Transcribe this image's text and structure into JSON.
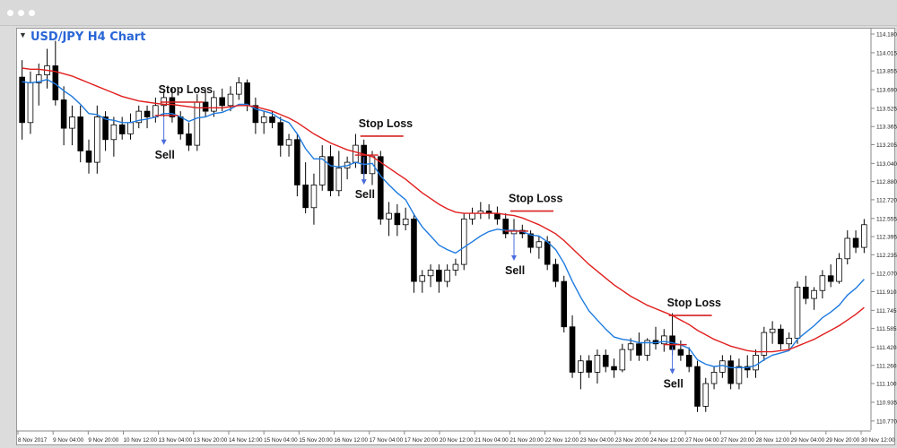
{
  "window": {
    "controls": [
      "dot",
      "dot",
      "dot"
    ]
  },
  "chart_data": {
    "type": "candlestick",
    "title": "USD/JPY H4 Chart",
    "ylim": [
      110.69,
      114.18
    ],
    "y_ticks": [
      "114.180",
      "114.015",
      "113.855",
      "113.690",
      "113.525",
      "113.365",
      "113.205",
      "113.040",
      "112.880",
      "112.720",
      "112.555",
      "112.395",
      "112.235",
      "112.070",
      "111.910",
      "111.745",
      "111.585",
      "111.420",
      "111.260",
      "111.100",
      "110.935",
      "110.770"
    ],
    "x_ticks": [
      "8 Nov 2017",
      "9 Nov 04:00",
      "9 Nov 20:00",
      "10 Nov 12:00",
      "13 Nov 04:00",
      "13 Nov 20:00",
      "14 Nov 12:00",
      "15 Nov 04:00",
      "15 Nov 20:00",
      "16 Nov 12:00",
      "17 Nov 04:00",
      "17 Nov 20:00",
      "20 Nov 12:00",
      "21 Nov 04:00",
      "21 Nov 20:00",
      "22 Nov 12:00",
      "23 Nov 04:00",
      "23 Nov 20:00",
      "24 Nov 12:00",
      "27 Nov 04:00",
      "27 Nov 20:00",
      "28 Nov 12:00",
      "29 Nov 04:00",
      "29 Nov 20:00",
      "30 Nov 12:00"
    ],
    "candles": [
      {
        "o": 113.8,
        "h": 113.95,
        "l": 113.25,
        "c": 113.4
      },
      {
        "o": 113.4,
        "h": 113.85,
        "l": 113.3,
        "c": 113.75
      },
      {
        "o": 113.75,
        "h": 113.92,
        "l": 113.55,
        "c": 113.82
      },
      {
        "o": 113.82,
        "h": 114.05,
        "l": 113.7,
        "c": 113.9
      },
      {
        "o": 113.9,
        "h": 114.12,
        "l": 113.55,
        "c": 113.6
      },
      {
        "o": 113.6,
        "h": 113.72,
        "l": 113.2,
        "c": 113.35
      },
      {
        "o": 113.35,
        "h": 113.55,
        "l": 113.2,
        "c": 113.45
      },
      {
        "o": 113.45,
        "h": 113.55,
        "l": 113.05,
        "c": 113.15
      },
      {
        "o": 113.15,
        "h": 113.25,
        "l": 112.95,
        "c": 113.05
      },
      {
        "o": 113.05,
        "h": 113.55,
        "l": 112.95,
        "c": 113.45
      },
      {
        "o": 113.45,
        "h": 113.5,
        "l": 113.15,
        "c": 113.25
      },
      {
        "o": 113.25,
        "h": 113.45,
        "l": 113.1,
        "c": 113.38
      },
      {
        "o": 113.38,
        "h": 113.45,
        "l": 113.25,
        "c": 113.3
      },
      {
        "o": 113.3,
        "h": 113.48,
        "l": 113.25,
        "c": 113.4
      },
      {
        "o": 113.4,
        "h": 113.55,
        "l": 113.35,
        "c": 113.5
      },
      {
        "o": 113.5,
        "h": 113.55,
        "l": 113.35,
        "c": 113.45
      },
      {
        "o": 113.45,
        "h": 113.62,
        "l": 113.4,
        "c": 113.55
      },
      {
        "o": 113.55,
        "h": 113.68,
        "l": 113.45,
        "c": 113.62
      },
      {
        "o": 113.62,
        "h": 113.7,
        "l": 113.4,
        "c": 113.45
      },
      {
        "o": 113.45,
        "h": 113.5,
        "l": 113.25,
        "c": 113.3
      },
      {
        "o": 113.3,
        "h": 113.4,
        "l": 113.15,
        "c": 113.2
      },
      {
        "o": 113.2,
        "h": 113.65,
        "l": 113.15,
        "c": 113.58
      },
      {
        "o": 113.58,
        "h": 113.7,
        "l": 113.45,
        "c": 113.5
      },
      {
        "o": 113.5,
        "h": 113.68,
        "l": 113.45,
        "c": 113.62
      },
      {
        "o": 113.62,
        "h": 113.7,
        "l": 113.5,
        "c": 113.55
      },
      {
        "o": 113.55,
        "h": 113.72,
        "l": 113.5,
        "c": 113.65
      },
      {
        "o": 113.65,
        "h": 113.8,
        "l": 113.6,
        "c": 113.75
      },
      {
        "o": 113.75,
        "h": 113.78,
        "l": 113.5,
        "c": 113.55
      },
      {
        "o": 113.55,
        "h": 113.62,
        "l": 113.3,
        "c": 113.4
      },
      {
        "o": 113.4,
        "h": 113.5,
        "l": 113.3,
        "c": 113.45
      },
      {
        "o": 113.45,
        "h": 113.5,
        "l": 113.35,
        "c": 113.4
      },
      {
        "o": 113.4,
        "h": 113.45,
        "l": 113.1,
        "c": 113.2
      },
      {
        "o": 113.2,
        "h": 113.3,
        "l": 113.1,
        "c": 113.25
      },
      {
        "o": 113.25,
        "h": 113.3,
        "l": 112.75,
        "c": 112.85
      },
      {
        "o": 112.85,
        "h": 113.05,
        "l": 112.6,
        "c": 112.65
      },
      {
        "o": 112.65,
        "h": 112.95,
        "l": 112.5,
        "c": 112.85
      },
      {
        "o": 112.85,
        "h": 113.2,
        "l": 112.8,
        "c": 113.1
      },
      {
        "o": 113.1,
        "h": 113.2,
        "l": 112.75,
        "c": 112.8
      },
      {
        "o": 112.8,
        "h": 113.15,
        "l": 112.75,
        "c": 113.0
      },
      {
        "o": 113.0,
        "h": 113.1,
        "l": 112.9,
        "c": 113.05
      },
      {
        "o": 113.05,
        "h": 113.3,
        "l": 113.0,
        "c": 113.2
      },
      {
        "o": 113.2,
        "h": 113.25,
        "l": 112.9,
        "c": 112.95
      },
      {
        "o": 112.95,
        "h": 113.15,
        "l": 112.85,
        "c": 113.1
      },
      {
        "o": 113.1,
        "h": 113.15,
        "l": 112.5,
        "c": 112.55
      },
      {
        "o": 112.55,
        "h": 112.7,
        "l": 112.4,
        "c": 112.6
      },
      {
        "o": 112.6,
        "h": 112.68,
        "l": 112.4,
        "c": 112.5
      },
      {
        "o": 112.5,
        "h": 112.65,
        "l": 112.45,
        "c": 112.55
      },
      {
        "o": 112.55,
        "h": 112.6,
        "l": 111.9,
        "c": 112.0
      },
      {
        "o": 112.0,
        "h": 112.1,
        "l": 111.9,
        "c": 112.05
      },
      {
        "o": 112.05,
        "h": 112.15,
        "l": 111.95,
        "c": 112.1
      },
      {
        "o": 112.1,
        "h": 112.15,
        "l": 111.9,
        "c": 112.0
      },
      {
        "o": 112.0,
        "h": 112.15,
        "l": 111.95,
        "c": 112.1
      },
      {
        "o": 112.1,
        "h": 112.2,
        "l": 112.05,
        "c": 112.15
      },
      {
        "o": 112.15,
        "h": 112.6,
        "l": 112.1,
        "c": 112.55
      },
      {
        "o": 112.55,
        "h": 112.65,
        "l": 112.5,
        "c": 112.6
      },
      {
        "o": 112.6,
        "h": 112.7,
        "l": 112.55,
        "c": 112.62
      },
      {
        "o": 112.62,
        "h": 112.68,
        "l": 112.55,
        "c": 112.6
      },
      {
        "o": 112.6,
        "h": 112.66,
        "l": 112.5,
        "c": 112.55
      },
      {
        "o": 112.55,
        "h": 112.6,
        "l": 112.38,
        "c": 112.42
      },
      {
        "o": 112.42,
        "h": 112.55,
        "l": 112.35,
        "c": 112.45
      },
      {
        "o": 112.45,
        "h": 112.5,
        "l": 112.38,
        "c": 112.42
      },
      {
        "o": 112.42,
        "h": 112.45,
        "l": 112.25,
        "c": 112.3
      },
      {
        "o": 112.3,
        "h": 112.4,
        "l": 112.2,
        "c": 112.35
      },
      {
        "o": 112.35,
        "h": 112.4,
        "l": 112.1,
        "c": 112.15
      },
      {
        "o": 112.15,
        "h": 112.2,
        "l": 111.95,
        "c": 112.0
      },
      {
        "o": 112.0,
        "h": 112.05,
        "l": 111.55,
        "c": 111.6
      },
      {
        "o": 111.6,
        "h": 111.7,
        "l": 111.15,
        "c": 111.2
      },
      {
        "o": 111.2,
        "h": 111.35,
        "l": 111.05,
        "c": 111.3
      },
      {
        "o": 111.3,
        "h": 111.35,
        "l": 111.15,
        "c": 111.2
      },
      {
        "o": 111.2,
        "h": 111.4,
        "l": 111.1,
        "c": 111.35
      },
      {
        "o": 111.35,
        "h": 111.4,
        "l": 111.2,
        "c": 111.25
      },
      {
        "o": 111.25,
        "h": 111.32,
        "l": 111.15,
        "c": 111.22
      },
      {
        "o": 111.22,
        "h": 111.45,
        "l": 111.2,
        "c": 111.4
      },
      {
        "o": 111.4,
        "h": 111.5,
        "l": 111.3,
        "c": 111.45
      },
      {
        "o": 111.45,
        "h": 111.55,
        "l": 111.3,
        "c": 111.35
      },
      {
        "o": 111.35,
        "h": 111.5,
        "l": 111.3,
        "c": 111.48
      },
      {
        "o": 111.48,
        "h": 111.6,
        "l": 111.4,
        "c": 111.45
      },
      {
        "o": 111.45,
        "h": 111.58,
        "l": 111.38,
        "c": 111.52
      },
      {
        "o": 111.52,
        "h": 111.72,
        "l": 111.35,
        "c": 111.4
      },
      {
        "o": 111.4,
        "h": 111.48,
        "l": 111.3,
        "c": 111.35
      },
      {
        "o": 111.35,
        "h": 111.42,
        "l": 111.2,
        "c": 111.25
      },
      {
        "o": 111.25,
        "h": 111.3,
        "l": 110.85,
        "c": 110.9
      },
      {
        "o": 110.9,
        "h": 111.15,
        "l": 110.85,
        "c": 111.1
      },
      {
        "o": 111.1,
        "h": 111.25,
        "l": 111.05,
        "c": 111.2
      },
      {
        "o": 111.2,
        "h": 111.35,
        "l": 111.15,
        "c": 111.3
      },
      {
        "o": 111.3,
        "h": 111.35,
        "l": 111.05,
        "c": 111.1
      },
      {
        "o": 111.1,
        "h": 111.32,
        "l": 111.05,
        "c": 111.25
      },
      {
        "o": 111.25,
        "h": 111.35,
        "l": 111.15,
        "c": 111.22
      },
      {
        "o": 111.22,
        "h": 111.4,
        "l": 111.15,
        "c": 111.35
      },
      {
        "o": 111.35,
        "h": 111.6,
        "l": 111.3,
        "c": 111.55
      },
      {
        "o": 111.55,
        "h": 111.65,
        "l": 111.45,
        "c": 111.58
      },
      {
        "o": 111.58,
        "h": 111.62,
        "l": 111.4,
        "c": 111.45
      },
      {
        "o": 111.45,
        "h": 111.55,
        "l": 111.4,
        "c": 111.5
      },
      {
        "o": 111.5,
        "h": 112.0,
        "l": 111.45,
        "c": 111.95
      },
      {
        "o": 111.95,
        "h": 112.05,
        "l": 111.8,
        "c": 111.85
      },
      {
        "o": 111.85,
        "h": 111.95,
        "l": 111.75,
        "c": 111.92
      },
      {
        "o": 111.92,
        "h": 112.1,
        "l": 111.85,
        "c": 112.05
      },
      {
        "o": 112.05,
        "h": 112.15,
        "l": 111.95,
        "c": 112.0
      },
      {
        "o": 112.0,
        "h": 112.25,
        "l": 111.98,
        "c": 112.2
      },
      {
        "o": 112.2,
        "h": 112.45,
        "l": 112.15,
        "c": 112.38
      },
      {
        "o": 112.38,
        "h": 112.45,
        "l": 112.25,
        "c": 112.3
      },
      {
        "o": 112.3,
        "h": 112.55,
        "l": 112.25,
        "c": 112.5
      }
    ],
    "series": [
      {
        "name": "",
        "color": "#1e7be0",
        "values": [
          113.76,
          113.75,
          113.76,
          113.78,
          113.74,
          113.68,
          113.63,
          113.56,
          113.48,
          113.47,
          113.43,
          113.42,
          113.4,
          113.4,
          113.42,
          113.43,
          113.45,
          113.48,
          113.48,
          113.45,
          113.41,
          113.44,
          113.45,
          113.48,
          113.49,
          113.52,
          113.56,
          113.56,
          113.52,
          113.5,
          113.48,
          113.43,
          113.4,
          113.3,
          113.17,
          113.08,
          113.08,
          113.02,
          113.01,
          113.02,
          113.05,
          113.03,
          113.04,
          112.93,
          112.85,
          112.78,
          112.72,
          112.59,
          112.48,
          112.4,
          112.32,
          112.28,
          112.25,
          112.3,
          112.35,
          112.4,
          112.44,
          112.46,
          112.45,
          112.45,
          112.44,
          112.41,
          112.4,
          112.35,
          112.28,
          112.16,
          112.0,
          111.86,
          111.74,
          111.66,
          111.58,
          111.51,
          111.49,
          111.48,
          111.46,
          111.46,
          111.46,
          111.47,
          111.46,
          111.44,
          111.41,
          111.31,
          111.27,
          111.25,
          111.26,
          111.24,
          111.24,
          111.24,
          111.26,
          111.31,
          111.35,
          111.37,
          111.39,
          111.49,
          111.55,
          111.61,
          111.68,
          111.73,
          111.79,
          111.88,
          111.94,
          112.02
        ]
      },
      {
        "name": "",
        "color": "#e01e1e",
        "values": [
          113.88,
          113.87,
          113.87,
          113.86,
          113.85,
          113.83,
          113.81,
          113.78,
          113.75,
          113.72,
          113.69,
          113.66,
          113.63,
          113.61,
          113.59,
          113.58,
          113.57,
          113.56,
          113.56,
          113.55,
          113.54,
          113.53,
          113.53,
          113.53,
          113.53,
          113.54,
          113.55,
          113.55,
          113.54,
          113.52,
          113.5,
          113.47,
          113.44,
          113.4,
          113.35,
          113.3,
          113.26,
          113.22,
          113.19,
          113.16,
          113.14,
          113.12,
          113.1,
          113.05,
          113.0,
          112.95,
          112.9,
          112.84,
          112.78,
          112.73,
          112.68,
          112.64,
          112.61,
          112.6,
          112.6,
          112.6,
          112.6,
          112.6,
          112.59,
          112.58,
          112.56,
          112.53,
          112.5,
          112.46,
          112.42,
          112.36,
          112.29,
          112.22,
          112.15,
          112.09,
          112.03,
          111.97,
          111.92,
          111.87,
          111.83,
          111.79,
          111.76,
          111.73,
          111.7,
          111.66,
          111.62,
          111.57,
          111.53,
          111.49,
          111.46,
          111.43,
          111.41,
          111.39,
          111.38,
          111.38,
          111.38,
          111.39,
          111.4,
          111.43,
          111.46,
          111.49,
          111.53,
          111.57,
          111.61,
          111.66,
          111.71,
          111.77
        ]
      }
    ],
    "annotations": [
      {
        "type": "stop_loss",
        "label": "Stop Loss",
        "candle": 17,
        "price": 113.58
      },
      {
        "type": "stop_loss",
        "label": "Stop Loss",
        "candle": 41,
        "price": 113.28
      },
      {
        "type": "stop_loss",
        "label": "Stop Loss",
        "candle": 59,
        "price": 112.62
      },
      {
        "type": "stop_loss",
        "label": "Stop Loss",
        "candle": 78,
        "price": 111.7
      },
      {
        "type": "sell",
        "label": "Sell",
        "candle": 17,
        "price": 113.4
      },
      {
        "type": "sell",
        "label": "Sell",
        "candle": 41,
        "price": 113.05
      },
      {
        "type": "sell",
        "label": "Sell",
        "candle": 59,
        "price": 112.38
      },
      {
        "type": "sell",
        "label": "Sell",
        "candle": 78,
        "price": 111.38
      }
    ]
  }
}
